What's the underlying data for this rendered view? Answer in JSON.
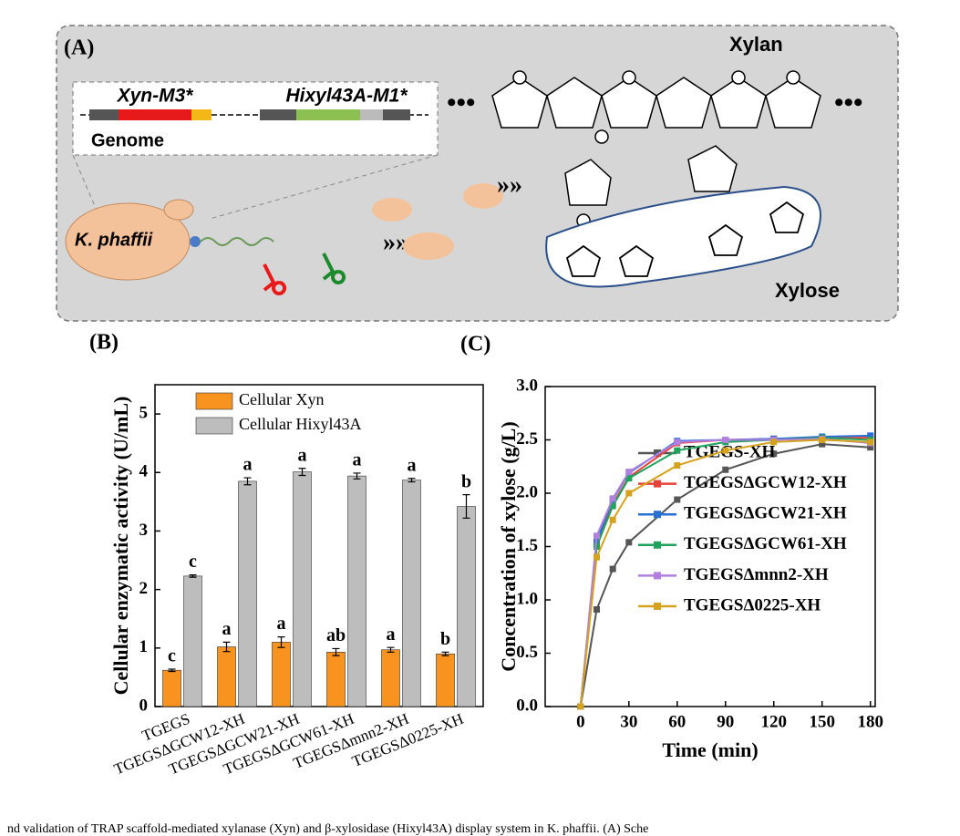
{
  "diagram": {
    "panel_label": "(A)",
    "gene1": "Xyn-M3*",
    "gene2": "Hixyl43A-M1*",
    "genome": "Genome",
    "xylan": "Xylan",
    "cell": "K. phaffii",
    "xylose": "Xylose"
  },
  "chart_data": [
    {
      "type": "bar",
      "panel_label": "(B)",
      "y_label": "Cellular enzymatic activity  (U/mL)",
      "categories": [
        "TGEGS",
        "TGEGSΔGCW12-XH",
        "TGEGSΔGCW21-XH",
        "TGEGSΔGCW61-XH",
        "TGEGSΔmnn2-XH",
        "TGEGSΔ0225-XH"
      ],
      "series": [
        {
          "name": "Cellular Xyn",
          "color": "#f7931e",
          "values": [
            0.62,
            1.02,
            1.1,
            0.93,
            0.97,
            0.9
          ],
          "errors": [
            0.02,
            0.08,
            0.09,
            0.06,
            0.04,
            0.03
          ],
          "significance": [
            "c",
            "a",
            "a",
            "ab",
            "a",
            "b"
          ]
        },
        {
          "name": "Cellular Hixyl43A",
          "color": "#bdbdbd",
          "values": [
            2.23,
            3.85,
            4.01,
            3.94,
            3.87,
            3.42
          ],
          "errors": [
            0.02,
            0.06,
            0.06,
            0.05,
            0.03,
            0.2
          ],
          "significance": [
            "c",
            "a",
            "a",
            "a",
            "a",
            "b"
          ]
        }
      ],
      "ylim": [
        0,
        5.5
      ],
      "yticks": [
        0,
        1,
        2,
        3,
        4,
        5
      ],
      "legend": "top-left"
    },
    {
      "type": "line",
      "panel_label": "(C)",
      "x_label": "Time (min)",
      "y_label": "Concentration of xylose (g/L)",
      "x": [
        0,
        10,
        20,
        30,
        60,
        90,
        120,
        150,
        180
      ],
      "series": [
        {
          "name": "TGEGS-XH",
          "color": "#555555",
          "values": [
            0,
            0.91,
            1.29,
            1.54,
            1.94,
            2.22,
            2.37,
            2.46,
            2.43
          ]
        },
        {
          "name": "TGEGSΔGCW12-XH",
          "color": "#e8413a",
          "values": [
            0,
            1.52,
            1.9,
            2.15,
            2.47,
            2.5,
            2.51,
            2.52,
            2.52
          ]
        },
        {
          "name": "TGEGSΔGCW21-XH",
          "color": "#2a6fd6",
          "values": [
            0,
            1.55,
            1.94,
            2.19,
            2.49,
            2.5,
            2.51,
            2.53,
            2.54
          ]
        },
        {
          "name": "TGEGSΔGCW61-XH",
          "color": "#1fa35c",
          "values": [
            0,
            1.5,
            1.88,
            2.14,
            2.4,
            2.48,
            2.5,
            2.52,
            2.5
          ]
        },
        {
          "name": "TGEGSΔmnn2-XH",
          "color": "#b07fe0",
          "values": [
            0,
            1.6,
            1.95,
            2.2,
            2.48,
            2.5,
            2.5,
            2.51,
            2.47
          ]
        },
        {
          "name": "TGEGSΔ0225-XH",
          "color": "#d6a21e",
          "values": [
            0,
            1.4,
            1.75,
            2.0,
            2.26,
            2.4,
            2.48,
            2.5,
            2.48
          ]
        }
      ],
      "xlim": [
        -22,
        183
      ],
      "xticks": [
        0,
        30,
        60,
        90,
        120,
        150,
        180
      ],
      "ylim": [
        0,
        3
      ],
      "yticks": [
        {
          "value": 0,
          "label": "0.0"
        },
        0.5,
        {
          "value": 1,
          "label": "1.0"
        },
        1.5,
        {
          "value": 2,
          "label": "2.0"
        },
        2.5,
        {
          "value": 3,
          "label": "3.0"
        }
      ],
      "legend": "lower-right"
    }
  ],
  "caption": "nd validation of TRAP scaffold-mediated xylanase (Xyn) and β-xylosidase (Hixyl43A) display system in K. phaffii. (A) Sche"
}
